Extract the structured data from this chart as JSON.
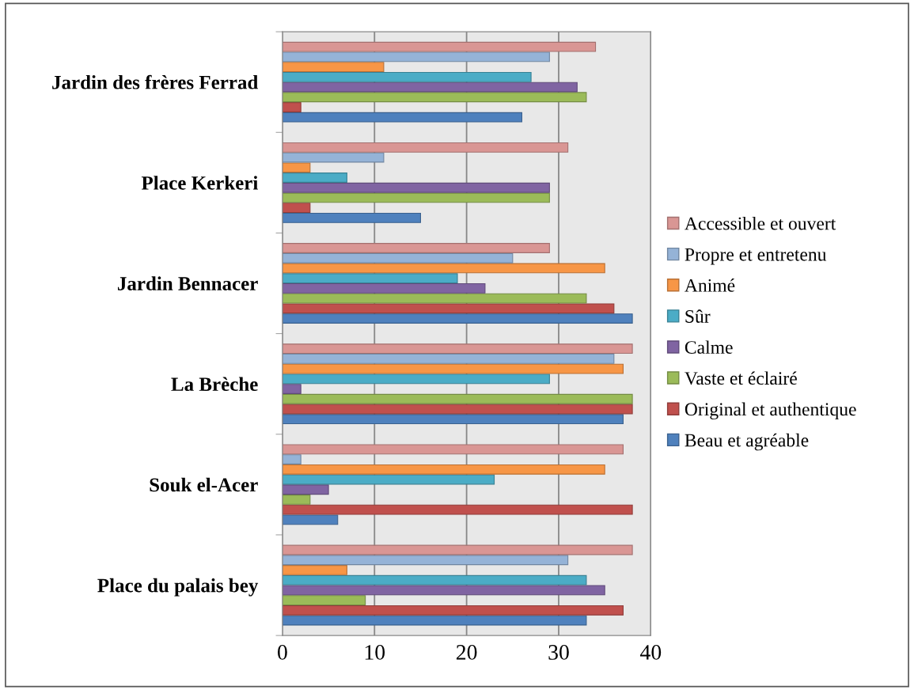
{
  "chart_data": {
    "type": "bar",
    "orientation": "horizontal",
    "categories": [
      "Jardin des frères Ferrad",
      "Place Kerkeri",
      "Jardin Bennacer",
      "La Brèche",
      "Souk el-Acer",
      "Place du palais bey"
    ],
    "series": [
      {
        "name": "Beau et agréable",
        "color": "#4f81bd",
        "values": [
          26,
          15,
          38,
          37,
          6,
          33
        ]
      },
      {
        "name": "Original et authentique",
        "color": "#c0504d",
        "values": [
          2,
          3,
          36,
          38,
          38,
          37
        ]
      },
      {
        "name": "Vaste et éclairé",
        "color": "#9bbb59",
        "values": [
          33,
          29,
          33,
          38,
          3,
          9
        ]
      },
      {
        "name": "Calme",
        "color": "#8064a2",
        "values": [
          32,
          29,
          22,
          2,
          5,
          35
        ]
      },
      {
        "name": "Sûr",
        "color": "#4bacc6",
        "values": [
          27,
          7,
          19,
          29,
          23,
          33
        ]
      },
      {
        "name": "Animé",
        "color": "#f79646",
        "values": [
          11,
          3,
          35,
          37,
          35,
          7
        ]
      },
      {
        "name": "Propre et entretenu",
        "color": "#95b3d7",
        "values": [
          29,
          11,
          25,
          36,
          2,
          31
        ]
      },
      {
        "name": "Accessible et ouvert",
        "color": "#d99694",
        "values": [
          34,
          31,
          29,
          38,
          37,
          38
        ]
      }
    ],
    "xlim": [
      0,
      40
    ],
    "xticks": [
      0,
      10,
      20,
      30,
      40
    ],
    "grid": "x",
    "legend": "right"
  }
}
